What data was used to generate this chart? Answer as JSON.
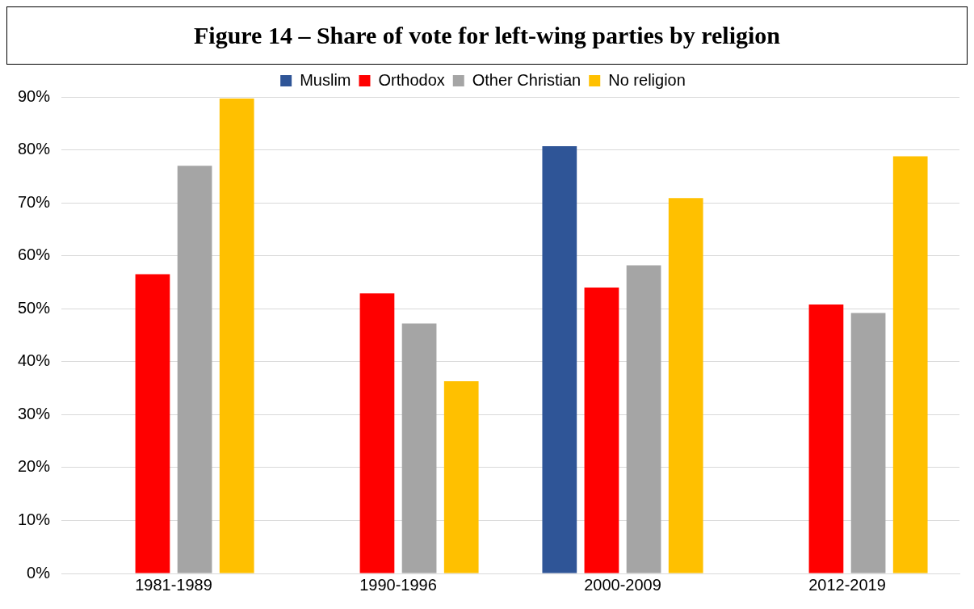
{
  "chart_data": {
    "type": "bar",
    "title": "Figure 14 – Share of vote for left-wing parties by religion",
    "categories": [
      "1981-1989",
      "1990-1996",
      "2000-2009",
      "2012-2019"
    ],
    "series": [
      {
        "name": "Muslim",
        "color": "#2f5597",
        "values": [
          null,
          null,
          80.7,
          null
        ]
      },
      {
        "name": "Orthodox",
        "color": "#ff0000",
        "values": [
          56.5,
          52.9,
          54.0,
          50.8
        ]
      },
      {
        "name": "Other Christian",
        "color": "#a5a5a5",
        "values": [
          77.0,
          47.2,
          58.2,
          49.2
        ]
      },
      {
        "name": "No religion",
        "color": "#ffc000",
        "values": [
          89.7,
          36.3,
          70.9,
          78.8
        ]
      }
    ],
    "ylim": [
      0,
      90
    ],
    "yticks": [
      {
        "value": 0,
        "label": "0%"
      },
      {
        "value": 10,
        "label": "10%"
      },
      {
        "value": 20,
        "label": "20%"
      },
      {
        "value": 30,
        "label": "30%"
      },
      {
        "value": 40,
        "label": "40%"
      },
      {
        "value": 50,
        "label": "50%"
      },
      {
        "value": 60,
        "label": "60%"
      },
      {
        "value": 70,
        "label": "70%"
      },
      {
        "value": 80,
        "label": "80%"
      },
      {
        "value": 90,
        "label": "90%"
      }
    ],
    "grid": "y",
    "legend": "top"
  }
}
